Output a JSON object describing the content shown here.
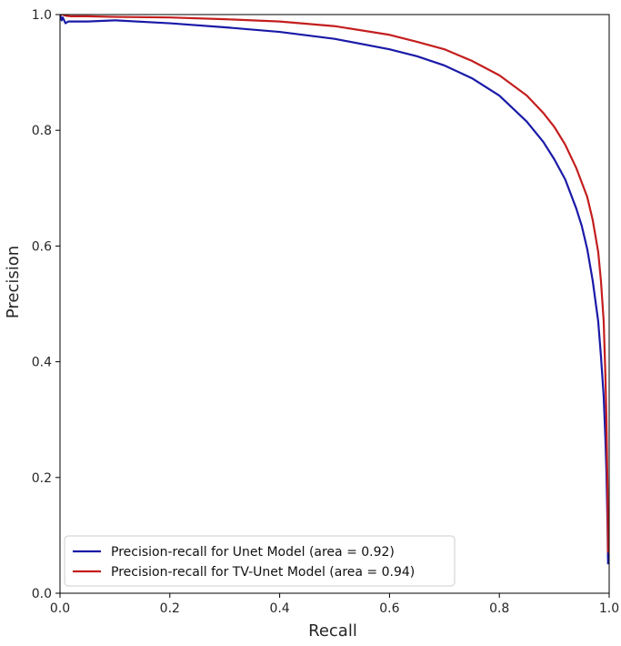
{
  "chart_data": {
    "type": "line",
    "title": "",
    "xlabel": "Recall",
    "ylabel": "Precision",
    "xlim": [
      0.0,
      1.0
    ],
    "ylim": [
      0.0,
      1.0
    ],
    "grid": false,
    "legend_position": "bottom-left",
    "x_ticks": [
      "0.0",
      "0.2",
      "0.4",
      "0.6",
      "0.8",
      "1.0"
    ],
    "y_ticks": [
      "0.0",
      "0.2",
      "0.4",
      "0.6",
      "0.8",
      "1.0"
    ],
    "series": [
      {
        "name": "Precision-recall for Unet Model (area = 0.92)",
        "color": "#1a1aa8",
        "x": [
          0.0,
          0.003,
          0.005,
          0.01,
          0.015,
          0.03,
          0.05,
          0.1,
          0.2,
          0.3,
          0.4,
          0.5,
          0.6,
          0.65,
          0.7,
          0.75,
          0.8,
          0.85,
          0.88,
          0.9,
          0.92,
          0.94,
          0.95,
          0.96,
          0.97,
          0.98,
          0.985,
          0.99,
          0.993,
          0.995,
          0.997,
          0.998
        ],
        "y": [
          1.0,
          0.99,
          0.995,
          0.985,
          0.988,
          0.988,
          0.988,
          0.99,
          0.985,
          0.978,
          0.97,
          0.958,
          0.94,
          0.928,
          0.912,
          0.89,
          0.86,
          0.815,
          0.78,
          0.75,
          0.715,
          0.665,
          0.635,
          0.595,
          0.54,
          0.47,
          0.41,
          0.34,
          0.27,
          0.21,
          0.12,
          0.05
        ]
      },
      {
        "name": "Precision-recall for TV-Unet Model (area = 0.94)",
        "color": "#c41e1e",
        "x": [
          0.0,
          0.005,
          0.01,
          0.02,
          0.05,
          0.1,
          0.2,
          0.3,
          0.4,
          0.5,
          0.6,
          0.65,
          0.7,
          0.75,
          0.8,
          0.85,
          0.88,
          0.9,
          0.92,
          0.94,
          0.96,
          0.97,
          0.98,
          0.985,
          0.99,
          0.993,
          0.995,
          0.997,
          0.998
        ],
        "y": [
          1.0,
          1.0,
          0.998,
          0.997,
          0.997,
          0.996,
          0.995,
          0.992,
          0.988,
          0.98,
          0.965,
          0.953,
          0.94,
          0.92,
          0.895,
          0.86,
          0.83,
          0.806,
          0.775,
          0.735,
          0.685,
          0.645,
          0.59,
          0.54,
          0.47,
          0.38,
          0.3,
          0.18,
          0.07
        ]
      }
    ]
  }
}
